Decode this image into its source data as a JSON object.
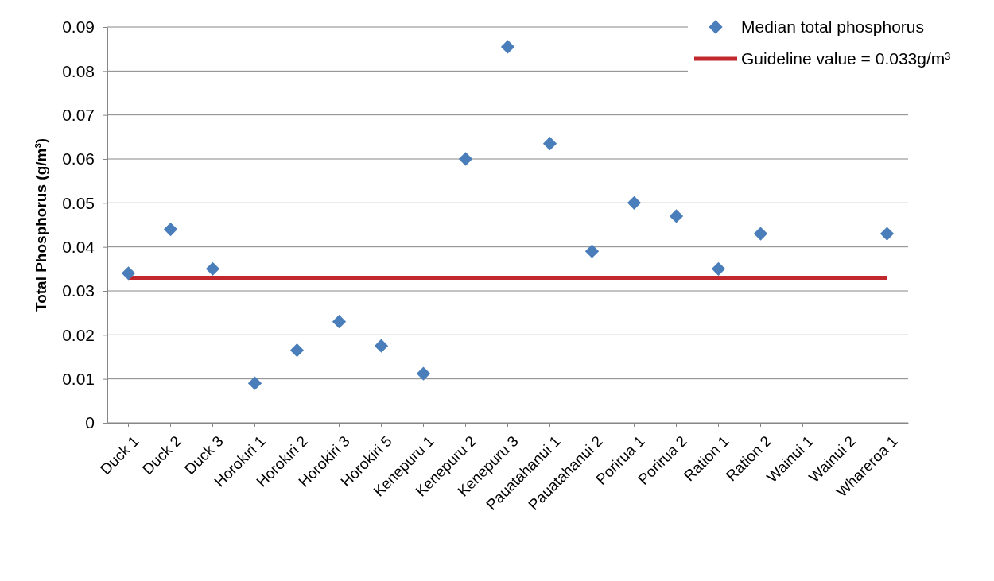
{
  "chart_data": {
    "type": "scatter",
    "ylabel": "Total Phosphorus (g/m³)",
    "categories": [
      "Duck 1",
      "Duck 2",
      "Duck 3",
      "Horokiri 1",
      "Horokiri 2",
      "Horokiri 3",
      "Horokiri 5",
      "Kenepuru 1",
      "Kenepuru 2",
      "Kenepuru 3",
      "Pauatahanui 1",
      "Pauatahanui 2",
      "Porirua 1",
      "Porirua 2",
      "Ration 1",
      "Ration 2",
      "Wainui 1",
      "Wainui 2",
      "Whareroa 1"
    ],
    "series": [
      {
        "name": "Median total phosphorus",
        "type": "scatter",
        "color": "#4a7ebb",
        "marker": "diamond",
        "values": [
          0.034,
          0.044,
          0.035,
          0.009,
          0.0165,
          0.023,
          0.0175,
          0.0112,
          0.06,
          0.0855,
          0.0635,
          0.039,
          0.05,
          0.047,
          0.035,
          0.043,
          null,
          null,
          0.043
        ]
      },
      {
        "name": "Guideline value = 0.033g/m³",
        "type": "line",
        "color": "#c0282d",
        "marker": "none",
        "values": [
          0.033,
          0.033,
          0.033,
          0.033,
          0.033,
          0.033,
          0.033,
          0.033,
          0.033,
          0.033,
          0.033,
          0.033,
          0.033,
          0.033,
          0.033,
          0.033,
          0.033,
          0.033,
          0.033
        ]
      }
    ],
    "ylim": [
      0,
      0.09
    ],
    "yticks": [
      0,
      0.01,
      0.02,
      0.03,
      0.04,
      0.05,
      0.06,
      0.07,
      0.08,
      0.09
    ],
    "grid": "y",
    "legend": "top right"
  }
}
